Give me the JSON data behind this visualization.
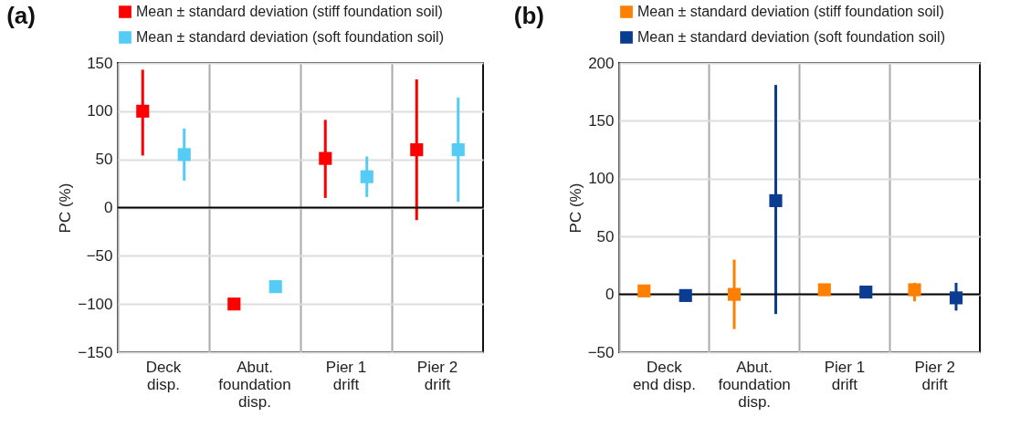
{
  "chart_data": [
    {
      "type": "scatter",
      "title": "(a)",
      "ylabel": "PC (%)",
      "categories": [
        "Deck\ndisp.",
        "Abut.\nfoundation\ndisp.",
        "Pier 1\ndrift",
        "Pier 2\ndrift"
      ],
      "ylim": [
        -150,
        150
      ],
      "yticks": [
        -150,
        -100,
        -50,
        0,
        50,
        100,
        150
      ],
      "grid": true,
      "legend": "top",
      "marker": "square",
      "ref_lines": [
        {
          "axis": "y",
          "value": 0,
          "color": "#000000"
        }
      ],
      "series": [
        {
          "name": "Mean  ± standard deviation (stiff foundation soil)",
          "color": "#ff0000",
          "values": [
            100,
            -100,
            51,
            60
          ],
          "errors": [
            [
              54,
              143
            ],
            null,
            [
              10,
              91
            ],
            [
              -13,
              133
            ]
          ]
        },
        {
          "name": "Mean  ± standard deviation (soft foundation soil)",
          "color": "#55ccf5",
          "values": [
            55,
            -82,
            32,
            60
          ],
          "errors": [
            [
              28,
              82
            ],
            null,
            [
              11,
              53
            ],
            [
              6,
              114
            ]
          ]
        }
      ]
    },
    {
      "type": "scatter",
      "title": "(b)",
      "ylabel": "PC (%)",
      "categories": [
        "Deck\nend disp.",
        "Abut.\nfoundation\ndisp.",
        "Pier 1\ndrift",
        "Pier 2\ndrift"
      ],
      "ylim": [
        -50,
        200
      ],
      "yticks": [
        -50,
        0,
        50,
        100,
        150,
        200
      ],
      "grid": true,
      "legend": "top",
      "marker": "square",
      "ref_lines": [
        {
          "axis": "y",
          "value": 0,
          "color": "#000000"
        }
      ],
      "series": [
        {
          "name": "Mean  ± standard deviation (stiff foundation soil)",
          "color": "#ff8000",
          "values": [
            3,
            0,
            4,
            4
          ],
          "errors": [
            null,
            [
              -30,
              30
            ],
            null,
            [
              -6,
              10
            ]
          ]
        },
        {
          "name": "Mean  ± standard deviation (soft foundation soil)",
          "color": "#0a3d8f",
          "values": [
            -1,
            81,
            2,
            -3
          ],
          "errors": [
            null,
            [
              -17,
              181
            ],
            null,
            [
              -14,
              10
            ]
          ]
        }
      ]
    }
  ]
}
